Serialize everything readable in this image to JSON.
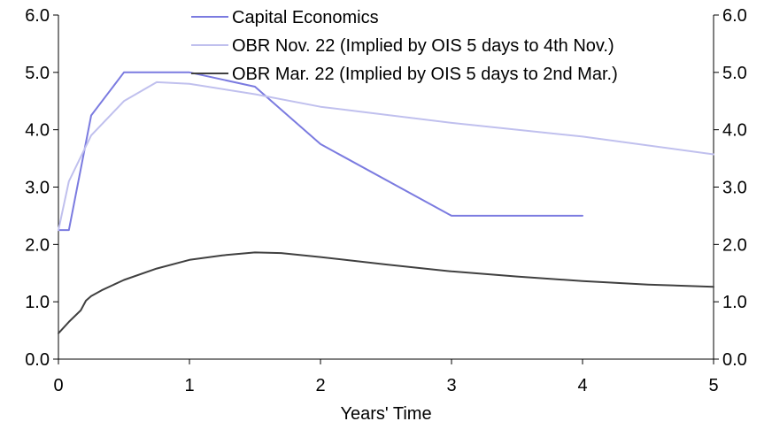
{
  "chart_data": {
    "type": "line",
    "xlabel": "Years' Time",
    "ylabel": "",
    "xlim": [
      0,
      5
    ],
    "ylim": [
      0,
      6
    ],
    "x_ticks": [
      0,
      1,
      2,
      3,
      4,
      5
    ],
    "x_tick_labels": [
      "0",
      "1",
      "2",
      "3",
      "4",
      "5"
    ],
    "y_ticks": [
      0,
      1,
      2,
      3,
      4,
      5,
      6
    ],
    "y_tick_labels": [
      "0.0",
      "1.0",
      "2.0",
      "3.0",
      "4.0",
      "5.0",
      "6.0"
    ],
    "grid": false,
    "legend_position": "top",
    "series": [
      {
        "name": "Capital Economics",
        "color": "#7b7be0",
        "x": [
          0,
          0.08,
          0.25,
          0.5,
          1.0,
          1.5,
          2.0,
          3.0,
          4.0
        ],
        "y": [
          2.25,
          2.25,
          4.25,
          5.0,
          5.0,
          4.75,
          3.75,
          2.5,
          2.5
        ]
      },
      {
        "name": "OBR Nov. 22 (Implied by OIS 5 days to 4th Nov.)",
        "color": "#c0c0ee",
        "x": [
          0,
          0.08,
          0.25,
          0.5,
          0.75,
          1.0,
          1.5,
          2.0,
          3.0,
          4.0,
          5.0
        ],
        "y": [
          2.25,
          3.1,
          3.9,
          4.5,
          4.83,
          4.8,
          4.62,
          4.4,
          4.12,
          3.88,
          3.57
        ]
      },
      {
        "name": "OBR Mar. 22 (Implied by OIS 5 days to 2nd Mar.)",
        "color": "#404040",
        "x": [
          0,
          0.08,
          0.17,
          0.21,
          0.25,
          0.33,
          0.5,
          0.75,
          1.0,
          1.25,
          1.5,
          1.7,
          2.0,
          2.5,
          3.0,
          3.5,
          4.0,
          4.5,
          5.0
        ],
        "y": [
          0.45,
          0.65,
          0.85,
          1.02,
          1.1,
          1.2,
          1.38,
          1.58,
          1.73,
          1.81,
          1.86,
          1.85,
          1.78,
          1.65,
          1.53,
          1.44,
          1.36,
          1.3,
          1.26
        ]
      }
    ]
  }
}
